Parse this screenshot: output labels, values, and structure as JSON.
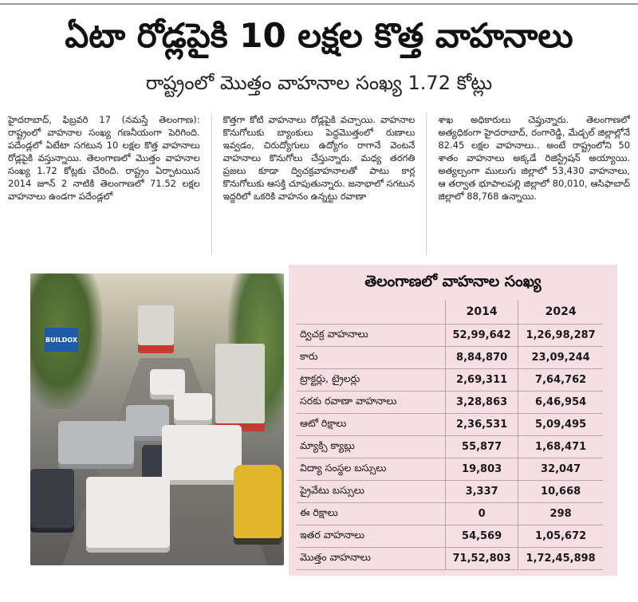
{
  "headline": "ఏటా రోడ్లపైకి 10 లక్షల కొత్త వాహనాలు",
  "subheadline": "రాష్ట్రంలో మొత్తం వాహనాల సంఖ్య 1.72 కోట్లు",
  "article": {
    "col1": "హైదరాబాద్, ఫిబ్రవరి 17 (నమస్తే తెలంగాణ): రాష్ట్రంలో వాహనాల సంఖ్య గణనీయంగా పెరిగింది. పదేండ్లలో ఏటేటా సగటున 10 లక్షల కొత్త వాహనాలు రోడ్లపైకి వస్తున్నాయి. తెలంగాణలో మొత్తం వాహనాల సంఖ్య 1.72 కోట్లకు చేరింది. రాష్ట్రం ఏర్పాటయిన 2014 జూన్ 2 నాటికి తెలంగాణలో 71.52 లక్షల వాహనాలు ఉండగా పదేండ్లలో",
    "col2": "కొత్తగా కోటి వాహనాలు రోడ్లపైకి వచ్చాయి. వాహనాల కొనుగోలుకు బ్యాంకులు పెద్దమొత్తంలో రుణాలు ఇవ్వడం, చిరుద్యోగులు ఉద్యోగం రాగానే వెంటనే వాహనాలు కొనుగోలు చేస్తున్నారు. మధ్య తరగతి ప్రజలు కూడా ద్విచక్రవాహనాలతో పాటు కార్ల కొనుగోలుకు ఆసక్తి చూపుతున్నారు. జనాభాలో సగటున ఇద్దరిలో ఒకరికి వాహనం ఉన్నట్టు రవాణా",
    "col3": "శాఖ అధికారులు చెప్తున్నారు. తెలంగాణలో అత్యధికంగా హైదరాబాద్, రంగారెడ్డి, మేడ్చల్ జిల్లాల్లోనే 82.45 లక్షల వాహనాలు.. అంటే రాష్ట్రంలోని 50 శాతం వాహనాలు అక్కడే రిజిస్ట్రేషన్ అయ్యాయి. అత్యల్పంగా ములుగు జిల్లాలో 53,430 వాహనాలు, ఆ తర్వాత భూపాలపల్లి జిల్లాలో 80,010, ఆసిఫాబాద్ జిల్లాలో 88,768 ఉన్నాయి."
  },
  "photo": {
    "sign_text": "BUILDOX"
  },
  "table": {
    "title": "తెలంగాణలో వాహనాల సంఖ్య",
    "columns": [
      "",
      "2014",
      "2024"
    ],
    "rows": [
      {
        "label": "ద్విచక్ర వాహనాలు",
        "y2014": "52,99,642",
        "y2024": "1,26,98,287"
      },
      {
        "label": "కారు",
        "y2014": "8,84,870",
        "y2024": "23,09,244"
      },
      {
        "label": "ట్రాక్టర్లు, ట్రైలర్లు",
        "y2014": "2,69,311",
        "y2024": "7,64,762"
      },
      {
        "label": "సరకు రవాణా వాహనాలు",
        "y2014": "3,28,863",
        "y2024": "6,46,954"
      },
      {
        "label": "ఆటో రిక్షాలు",
        "y2014": "2,36,531",
        "y2024": "5,09,495"
      },
      {
        "label": "మ్యాక్సి క్యాబ్లు",
        "y2014": "55,877",
        "y2024": "1,68,471"
      },
      {
        "label": "విద్యా సంస్థల బస్సులు",
        "y2014": "19,803",
        "y2024": "32,047"
      },
      {
        "label": "ప్రైవేటు బస్సులు",
        "y2014": "3,337",
        "y2024": "10,668"
      },
      {
        "label": "ఈ రిక్షాలు",
        "y2014": "0",
        "y2024": "298"
      },
      {
        "label": "ఇతర వాహనాలు",
        "y2014": "54,569",
        "y2024": "1,05,672"
      },
      {
        "label": "మొత్తం వాహనాలు",
        "y2014": "71,52,803",
        "y2024": "1,72,45,898"
      }
    ]
  },
  "colors": {
    "table_bg": "#f7dde4",
    "rule": "#9b9b9b"
  }
}
